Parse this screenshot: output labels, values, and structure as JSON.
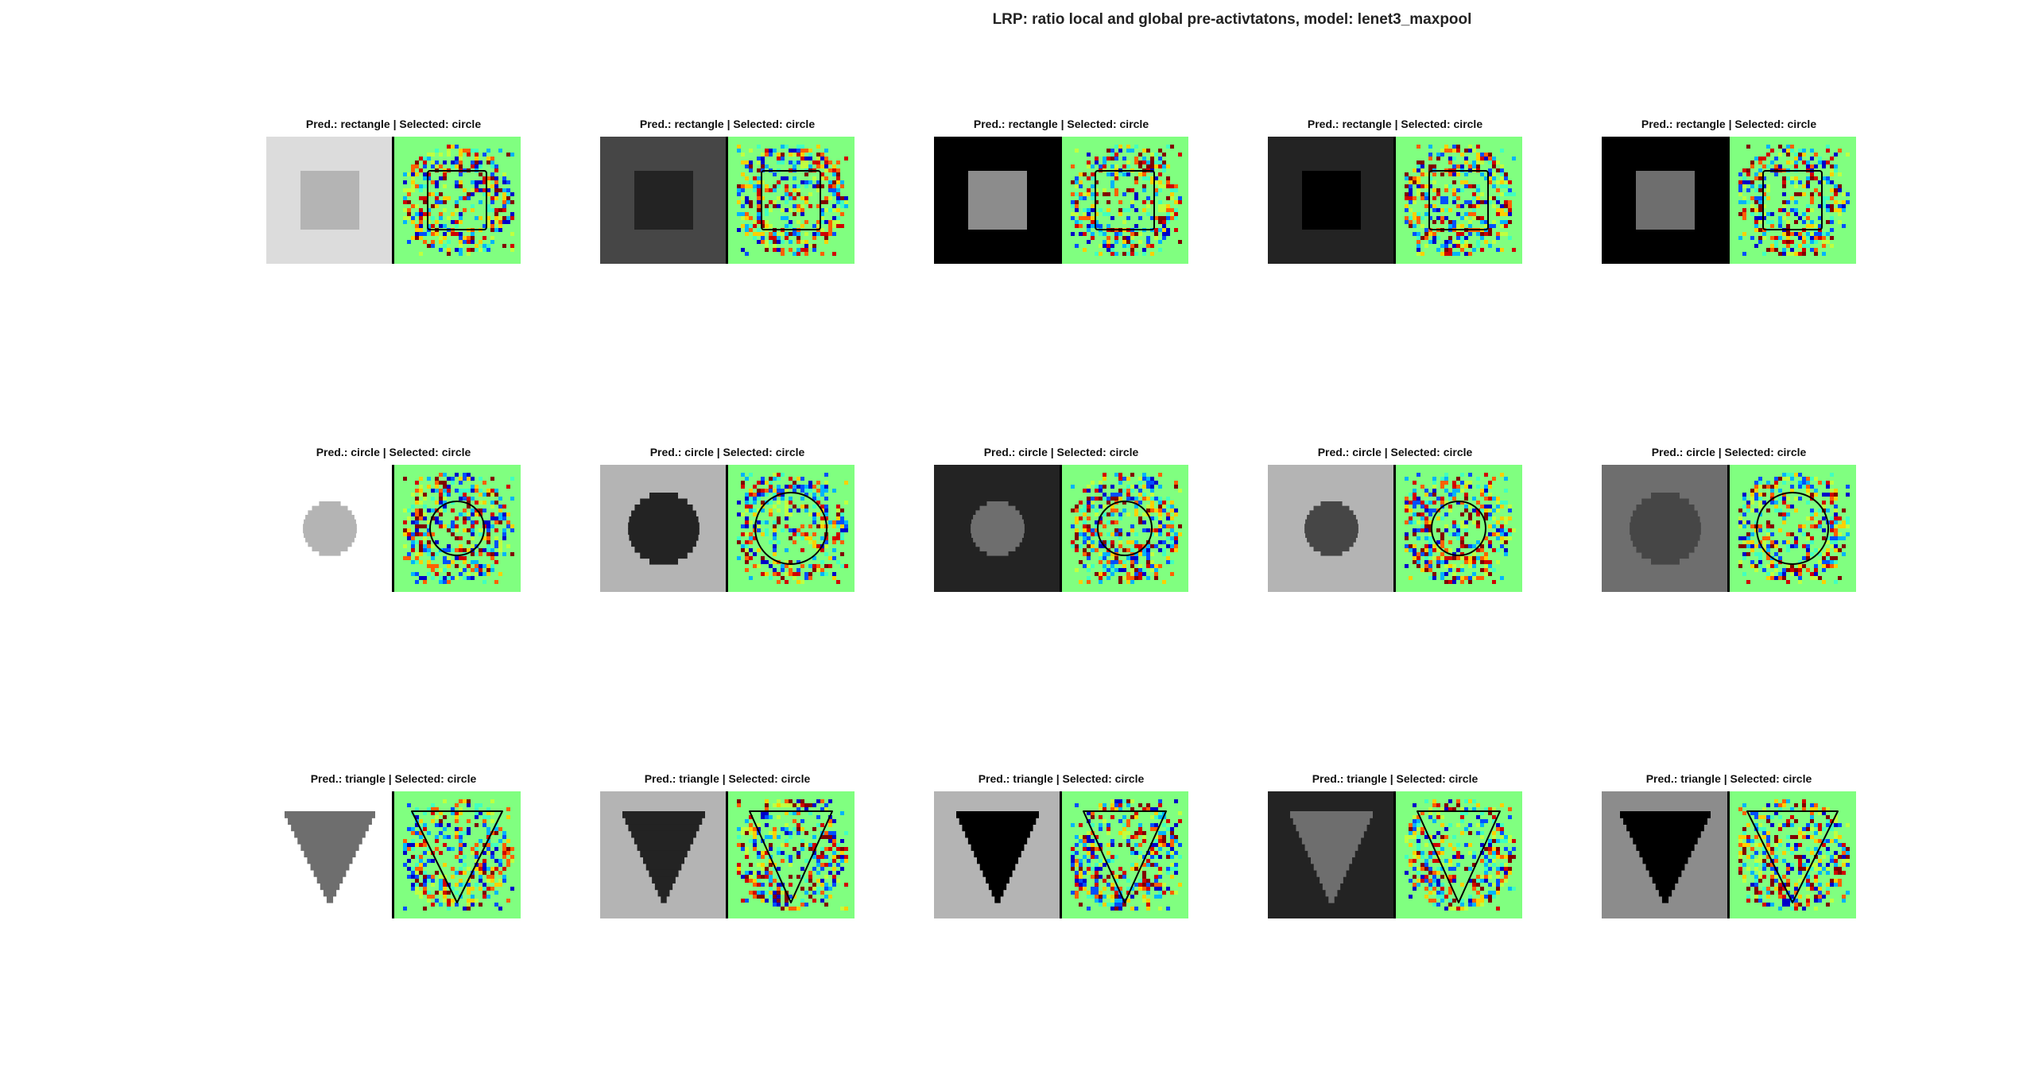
{
  "figure_title": "LRP: ratio local and global pre-activtatons, model: lenet3_maxpool",
  "colors": {
    "heat_background": "#80ff80",
    "outline": "#000000",
    "jet_palette": [
      "#0000c8",
      "#0050ff",
      "#00b4ff",
      "#40ffc0",
      "#c0ff40",
      "#ffd000",
      "#ff6000",
      "#d00000",
      "#800000"
    ]
  },
  "panels": [
    {
      "title": "Pred.: rectangle | Selected: circle",
      "shape": "rectangle",
      "bg": "#dcdcdc",
      "fg": "#b4b4b4",
      "shape_size": "small"
    },
    {
      "title": "Pred.: rectangle | Selected: circle",
      "shape": "rectangle",
      "bg": "#464646",
      "fg": "#232323",
      "shape_size": "small"
    },
    {
      "title": "Pred.: rectangle | Selected: circle",
      "shape": "rectangle",
      "bg": "#000000",
      "fg": "#8c8c8c",
      "shape_size": "small"
    },
    {
      "title": "Pred.: rectangle | Selected: circle",
      "shape": "rectangle",
      "bg": "#232323",
      "fg": "#000000",
      "shape_size": "small"
    },
    {
      "title": "Pred.: rectangle | Selected: circle",
      "shape": "rectangle",
      "bg": "#000000",
      "fg": "#6e6e6e",
      "shape_size": "small"
    },
    {
      "title": "Pred.: circle | Selected: circle",
      "shape": "circle",
      "bg": "#ffffff",
      "fg": "#b4b4b4",
      "shape_size": "small"
    },
    {
      "title": "Pred.: circle | Selected: circle",
      "shape": "circle",
      "bg": "#b4b4b4",
      "fg": "#232323",
      "shape_size": "large"
    },
    {
      "title": "Pred.: circle | Selected: circle",
      "shape": "circle",
      "bg": "#232323",
      "fg": "#6e6e6e",
      "shape_size": "small"
    },
    {
      "title": "Pred.: circle | Selected: circle",
      "shape": "circle",
      "bg": "#b4b4b4",
      "fg": "#464646",
      "shape_size": "small"
    },
    {
      "title": "Pred.: circle | Selected: circle",
      "shape": "circle",
      "bg": "#6e6e6e",
      "fg": "#464646",
      "shape_size": "large"
    },
    {
      "title": "Pred.: triangle | Selected: circle",
      "shape": "triangle",
      "bg": "#ffffff",
      "fg": "#6e6e6e",
      "shape_size": "large"
    },
    {
      "title": "Pred.: triangle | Selected: circle",
      "shape": "triangle",
      "bg": "#b4b4b4",
      "fg": "#232323",
      "shape_size": "small"
    },
    {
      "title": "Pred.: triangle | Selected: circle",
      "shape": "triangle",
      "bg": "#b4b4b4",
      "fg": "#000000",
      "shape_size": "small"
    },
    {
      "title": "Pred.: triangle | Selected: circle",
      "shape": "triangle",
      "bg": "#232323",
      "fg": "#6e6e6e",
      "shape_size": "small"
    },
    {
      "title": "Pred.: triangle | Selected: circle",
      "shape": "triangle",
      "bg": "#8c8c8c",
      "fg": "#000000",
      "shape_size": "large"
    }
  ]
}
